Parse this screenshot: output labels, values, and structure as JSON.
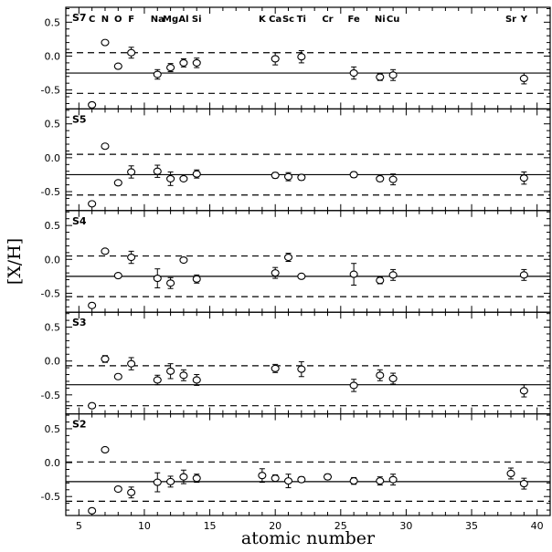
{
  "chart_data": {
    "type": "scatter",
    "xlabel": "atomic number",
    "ylabel": "[X/H]",
    "xlim": [
      4,
      41
    ],
    "ylim": [
      -0.78,
      0.72
    ],
    "x_ticks": [
      5,
      10,
      15,
      20,
      25,
      30,
      35,
      40
    ],
    "y_ticks": [
      -0.5,
      0.0,
      0.5
    ],
    "y_tick_labels": [
      "-0.5",
      "0.0",
      "0.5"
    ],
    "element_labels": [
      {
        "z": 6,
        "label": "C"
      },
      {
        "z": 7,
        "label": "N"
      },
      {
        "z": 8,
        "label": "O"
      },
      {
        "z": 9,
        "label": "F"
      },
      {
        "z": 11,
        "label": "Na"
      },
      {
        "z": 12,
        "label": "Mg"
      },
      {
        "z": 13,
        "label": "Al"
      },
      {
        "z": 14,
        "label": "Si"
      },
      {
        "z": 19,
        "label": "K"
      },
      {
        "z": 20,
        "label": "Ca"
      },
      {
        "z": 21,
        "label": "Sc"
      },
      {
        "z": 22,
        "label": "Ti"
      },
      {
        "z": 24,
        "label": "Cr"
      },
      {
        "z": 26,
        "label": "Fe"
      },
      {
        "z": 28,
        "label": "Ni"
      },
      {
        "z": 29,
        "label": "Cu"
      },
      {
        "z": 38,
        "label": "Sr"
      },
      {
        "z": 39,
        "label": "Y"
      }
    ],
    "panels": [
      {
        "name": "S7",
        "mean": -0.25,
        "upper": 0.05,
        "lower": -0.55,
        "points": [
          {
            "x": 6,
            "y": -0.72,
            "err": 0
          },
          {
            "x": 7,
            "y": 0.2,
            "err": 0
          },
          {
            "x": 8,
            "y": -0.15,
            "err": 0
          },
          {
            "x": 9,
            "y": 0.05,
            "err": 0.08
          },
          {
            "x": 11,
            "y": -0.27,
            "err": 0.07
          },
          {
            "x": 12,
            "y": -0.17,
            "err": 0.06
          },
          {
            "x": 13,
            "y": -0.1,
            "err": 0.06
          },
          {
            "x": 14,
            "y": -0.1,
            "err": 0.07
          },
          {
            "x": 20,
            "y": -0.04,
            "err": 0.09
          },
          {
            "x": 22,
            "y": -0.01,
            "err": 0.09
          },
          {
            "x": 26,
            "y": -0.25,
            "err": 0.09
          },
          {
            "x": 28,
            "y": -0.31,
            "err": 0.05
          },
          {
            "x": 29,
            "y": -0.28,
            "err": 0.08
          },
          {
            "x": 39,
            "y": -0.33,
            "err": 0.08
          }
        ]
      },
      {
        "name": "S5",
        "mean": -0.25,
        "upper": 0.05,
        "lower": -0.55,
        "points": [
          {
            "x": 6,
            "y": -0.68,
            "err": 0
          },
          {
            "x": 7,
            "y": 0.17,
            "err": 0
          },
          {
            "x": 8,
            "y": -0.37,
            "err": 0
          },
          {
            "x": 9,
            "y": -0.21,
            "err": 0.09
          },
          {
            "x": 11,
            "y": -0.2,
            "err": 0.09
          },
          {
            "x": 12,
            "y": -0.31,
            "err": 0.1
          },
          {
            "x": 13,
            "y": -0.31,
            "err": 0
          },
          {
            "x": 14,
            "y": -0.24,
            "err": 0.06
          },
          {
            "x": 20,
            "y": -0.26,
            "err": 0.04
          },
          {
            "x": 21,
            "y": -0.28,
            "err": 0.06
          },
          {
            "x": 22,
            "y": -0.29,
            "err": 0.04
          },
          {
            "x": 26,
            "y": -0.25,
            "err": 0.04
          },
          {
            "x": 28,
            "y": -0.31,
            "err": 0.04
          },
          {
            "x": 29,
            "y": -0.32,
            "err": 0.08
          },
          {
            "x": 39,
            "y": -0.3,
            "err": 0.09
          }
        ]
      },
      {
        "name": "S4",
        "mean": -0.25,
        "upper": 0.05,
        "lower": -0.55,
        "points": [
          {
            "x": 6,
            "y": -0.68,
            "err": 0
          },
          {
            "x": 7,
            "y": 0.12,
            "err": 0
          },
          {
            "x": 8,
            "y": -0.24,
            "err": 0
          },
          {
            "x": 9,
            "y": 0.03,
            "err": 0.09
          },
          {
            "x": 11,
            "y": -0.28,
            "err": 0.14
          },
          {
            "x": 12,
            "y": -0.35,
            "err": 0.08
          },
          {
            "x": 13,
            "y": -0.01,
            "err": 0
          },
          {
            "x": 14,
            "y": -0.29,
            "err": 0.06
          },
          {
            "x": 20,
            "y": -0.2,
            "err": 0.08
          },
          {
            "x": 21,
            "y": 0.03,
            "err": 0.06
          },
          {
            "x": 22,
            "y": -0.25,
            "err": 0
          },
          {
            "x": 26,
            "y": -0.22,
            "err": 0.16
          },
          {
            "x": 28,
            "y": -0.31,
            "err": 0.05
          },
          {
            "x": 29,
            "y": -0.23,
            "err": 0.08
          },
          {
            "x": 39,
            "y": -0.23,
            "err": 0.08
          }
        ]
      },
      {
        "name": "S3",
        "mean": -0.35,
        "upper": -0.07,
        "lower": -0.66,
        "points": [
          {
            "x": 6,
            "y": -0.66,
            "err": 0
          },
          {
            "x": 7,
            "y": 0.03,
            "err": 0.05
          },
          {
            "x": 8,
            "y": -0.23,
            "err": 0
          },
          {
            "x": 9,
            "y": -0.04,
            "err": 0.09
          },
          {
            "x": 11,
            "y": -0.28,
            "err": 0.07
          },
          {
            "x": 12,
            "y": -0.15,
            "err": 0.11
          },
          {
            "x": 13,
            "y": -0.21,
            "err": 0.08
          },
          {
            "x": 14,
            "y": -0.28,
            "err": 0.08
          },
          {
            "x": 20,
            "y": -0.11,
            "err": 0.06
          },
          {
            "x": 22,
            "y": -0.12,
            "err": 0.11
          },
          {
            "x": 26,
            "y": -0.36,
            "err": 0.09
          },
          {
            "x": 28,
            "y": -0.21,
            "err": 0.08
          },
          {
            "x": 29,
            "y": -0.26,
            "err": 0.08
          },
          {
            "x": 39,
            "y": -0.44,
            "err": 0.09
          }
        ]
      },
      {
        "name": "S2",
        "mean": -0.28,
        "upper": 0.01,
        "lower": -0.57,
        "points": [
          {
            "x": 6,
            "y": -0.71,
            "err": 0
          },
          {
            "x": 7,
            "y": 0.19,
            "err": 0
          },
          {
            "x": 8,
            "y": -0.39,
            "err": 0
          },
          {
            "x": 9,
            "y": -0.44,
            "err": 0.08
          },
          {
            "x": 11,
            "y": -0.29,
            "err": 0.14
          },
          {
            "x": 12,
            "y": -0.28,
            "err": 0.08
          },
          {
            "x": 13,
            "y": -0.21,
            "err": 0.1
          },
          {
            "x": 14,
            "y": -0.23,
            "err": 0.06
          },
          {
            "x": 19,
            "y": -0.19,
            "err": 0.1
          },
          {
            "x": 20,
            "y": -0.23,
            "err": 0.05
          },
          {
            "x": 21,
            "y": -0.27,
            "err": 0.1
          },
          {
            "x": 22,
            "y": -0.25,
            "err": 0.04
          },
          {
            "x": 24,
            "y": -0.21,
            "err": 0.04
          },
          {
            "x": 26,
            "y": -0.27,
            "err": 0.05
          },
          {
            "x": 28,
            "y": -0.27,
            "err": 0.06
          },
          {
            "x": 29,
            "y": -0.25,
            "err": 0.08
          },
          {
            "x": 38,
            "y": -0.16,
            "err": 0.08
          },
          {
            "x": 39,
            "y": -0.31,
            "err": 0.08
          }
        ]
      }
    ]
  }
}
